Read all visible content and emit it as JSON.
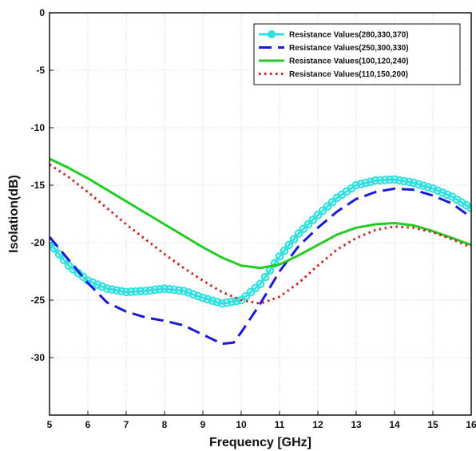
{
  "chart_data": {
    "type": "line",
    "title": "",
    "xlabel": "Frequency [GHz]",
    "ylabel": "Isolation(dB)",
    "xlim": [
      5,
      16
    ],
    "ylim": [
      -35,
      0
    ],
    "xticks": [
      5,
      6,
      7,
      8,
      9,
      10,
      11,
      12,
      13,
      14,
      15,
      16
    ],
    "yticks": [
      0,
      -5,
      -10,
      -15,
      -20,
      -25,
      -30
    ],
    "ytick_labels": [
      "0",
      "-5",
      "-10",
      "-15",
      "-20",
      "-25",
      "-30"
    ],
    "grid": true,
    "legend_position": "top-right",
    "series": [
      {
        "name": "Resistance Values(280,330,370)",
        "color": "#33e0e0",
        "style": "solid-circle-markers",
        "points": [
          [
            5,
            -20.0
          ],
          [
            5.5,
            -22.0
          ],
          [
            6,
            -23.3
          ],
          [
            6.5,
            -24.0
          ],
          [
            7,
            -24.3
          ],
          [
            7.5,
            -24.2
          ],
          [
            8,
            -24.0
          ],
          [
            8.5,
            -24.2
          ],
          [
            9,
            -24.8
          ],
          [
            9.5,
            -25.3
          ],
          [
            10,
            -25.0
          ],
          [
            10.5,
            -23.6
          ],
          [
            11,
            -21.2
          ],
          [
            11.5,
            -19.2
          ],
          [
            12,
            -17.6
          ],
          [
            12.5,
            -16.1
          ],
          [
            13,
            -15.0
          ],
          [
            13.5,
            -14.6
          ],
          [
            14,
            -14.5
          ],
          [
            14.5,
            -14.8
          ],
          [
            15,
            -15.3
          ],
          [
            15.5,
            -16.0
          ],
          [
            16,
            -17.0
          ]
        ]
      },
      {
        "name": "Resistance Values(250,300,330)",
        "color": "#1a1ad6",
        "style": "dashed",
        "points": [
          [
            5,
            -19.5
          ],
          [
            5.5,
            -21.5
          ],
          [
            6,
            -23.5
          ],
          [
            6.5,
            -25.2
          ],
          [
            7,
            -26.0
          ],
          [
            7.5,
            -26.5
          ],
          [
            8,
            -26.8
          ],
          [
            8.5,
            -27.2
          ],
          [
            9,
            -28.0
          ],
          [
            9.5,
            -28.8
          ],
          [
            9.8,
            -28.7
          ],
          [
            10,
            -27.8
          ],
          [
            10.5,
            -25.3
          ],
          [
            11,
            -22.5
          ],
          [
            11.5,
            -20.3
          ],
          [
            12,
            -18.7
          ],
          [
            12.5,
            -17.3
          ],
          [
            13,
            -16.2
          ],
          [
            13.5,
            -15.6
          ],
          [
            14,
            -15.3
          ],
          [
            14.5,
            -15.4
          ],
          [
            15,
            -15.9
          ],
          [
            15.5,
            -16.6
          ],
          [
            16,
            -17.8
          ]
        ]
      },
      {
        "name": "Resistance Values(100,120,240)",
        "color": "#22cc22",
        "style": "solid",
        "points": [
          [
            5,
            -12.7
          ],
          [
            5.5,
            -13.5
          ],
          [
            6,
            -14.4
          ],
          [
            6.5,
            -15.4
          ],
          [
            7,
            -16.4
          ],
          [
            7.5,
            -17.4
          ],
          [
            8,
            -18.4
          ],
          [
            8.5,
            -19.4
          ],
          [
            9,
            -20.4
          ],
          [
            9.5,
            -21.3
          ],
          [
            10,
            -22.0
          ],
          [
            10.5,
            -22.2
          ],
          [
            11,
            -21.9
          ],
          [
            11.5,
            -21.1
          ],
          [
            12,
            -20.2
          ],
          [
            12.5,
            -19.3
          ],
          [
            13,
            -18.7
          ],
          [
            13.5,
            -18.4
          ],
          [
            14,
            -18.3
          ],
          [
            14.5,
            -18.5
          ],
          [
            15,
            -19.0
          ],
          [
            15.5,
            -19.6
          ],
          [
            16,
            -20.2
          ]
        ]
      },
      {
        "name": "Resistance Values(110,150,200)",
        "color": "#cc2222",
        "style": "dotted",
        "points": [
          [
            5,
            -13.2
          ],
          [
            5.5,
            -14.3
          ],
          [
            6,
            -15.6
          ],
          [
            6.5,
            -17.0
          ],
          [
            7,
            -18.4
          ],
          [
            7.5,
            -19.7
          ],
          [
            8,
            -21.0
          ],
          [
            8.5,
            -22.2
          ],
          [
            9,
            -23.3
          ],
          [
            9.5,
            -24.3
          ],
          [
            10,
            -25.0
          ],
          [
            10.5,
            -25.3
          ],
          [
            11,
            -24.7
          ],
          [
            11.5,
            -23.5
          ],
          [
            12,
            -22.0
          ],
          [
            12.5,
            -20.6
          ],
          [
            13,
            -19.6
          ],
          [
            13.5,
            -18.9
          ],
          [
            14,
            -18.6
          ],
          [
            14.5,
            -18.7
          ],
          [
            15,
            -19.1
          ],
          [
            15.5,
            -19.7
          ],
          [
            16,
            -20.4
          ]
        ]
      }
    ]
  }
}
